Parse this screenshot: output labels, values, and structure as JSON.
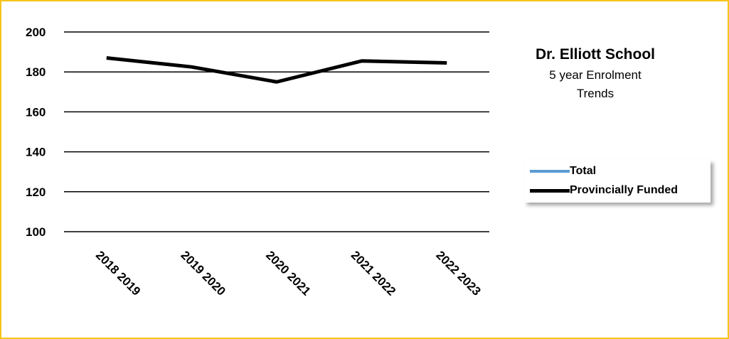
{
  "chart_data": {
    "type": "line",
    "title": "Dr. Elliott School",
    "subtitle": "5 year Enrolment Trends",
    "categories": [
      "2018 2019",
      "2019 2020",
      "2020 2021",
      "2021 2022",
      "2022 2023"
    ],
    "series": [
      {
        "name": "Total",
        "values": [
          187,
          182.5,
          175,
          185.5,
          184.5
        ],
        "color": "#5b9bd5"
      },
      {
        "name": "Provincially Funded",
        "values": [
          187,
          182.5,
          175,
          185.5,
          184.5
        ],
        "color": "#000000"
      }
    ],
    "yticks": [
      100,
      120,
      140,
      160,
      180,
      200
    ],
    "ylim": [
      100,
      200
    ],
    "grid": true,
    "legend_position": "right"
  },
  "frame_color": "#f5c518"
}
